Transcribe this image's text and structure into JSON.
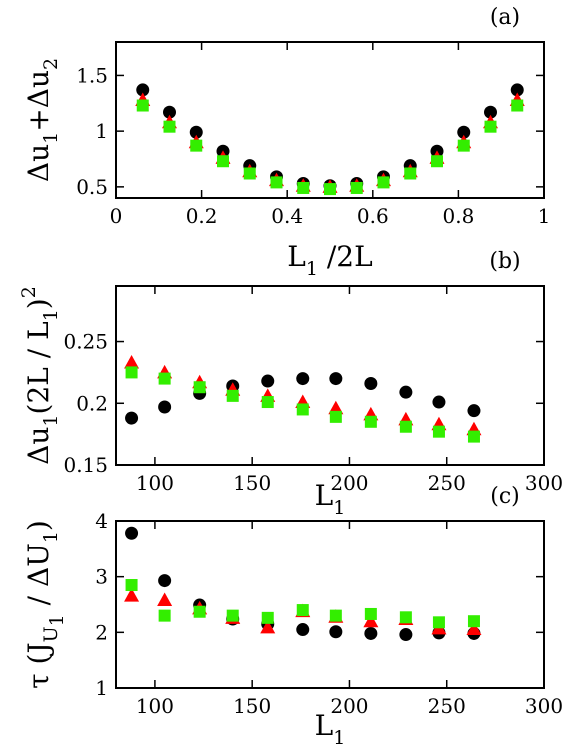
{
  "chart_data": [
    {
      "type": "scatter",
      "panel_label": "(a)",
      "xlabel": {
        "main": "L",
        "sub": "1",
        "rest": " /2L"
      },
      "ylabel": {
        "parts": [
          [
            "Δu",
            "n"
          ],
          [
            "1",
            "s"
          ],
          [
            "+Δu",
            "n"
          ],
          [
            "2",
            "s"
          ]
        ]
      },
      "xlim": [
        0,
        1
      ],
      "ylim": [
        0.4,
        1.8
      ],
      "xticks": [
        0,
        0.2,
        0.4,
        0.6,
        0.8,
        1
      ],
      "xtick_labels": [
        "0",
        "0.2",
        "0.4",
        "0.6",
        "0.8",
        "1"
      ],
      "yticks": [
        0.5,
        1,
        1.5
      ],
      "ytick_labels": [
        "0.5",
        "1",
        "1.5"
      ],
      "series": [
        {
          "marker": "circle",
          "color": "#000000",
          "x": [
            0.0625,
            0.125,
            0.1875,
            0.25,
            0.3125,
            0.375,
            0.4375,
            0.5,
            0.5625,
            0.625,
            0.6875,
            0.75,
            0.8125,
            0.875,
            0.9375
          ],
          "y": [
            1.37,
            1.17,
            0.99,
            0.82,
            0.69,
            0.59,
            0.53,
            0.51,
            0.53,
            0.59,
            0.69,
            0.82,
            0.99,
            1.17,
            1.37
          ]
        },
        {
          "marker": "triangle",
          "color": "#ff0000",
          "x": [
            0.0625,
            0.125,
            0.1875,
            0.25,
            0.3125,
            0.375,
            0.4375,
            0.5,
            0.5625,
            0.625,
            0.6875,
            0.75,
            0.8125,
            0.875,
            0.9375
          ],
          "y": [
            1.28,
            1.08,
            0.9,
            0.76,
            0.64,
            0.56,
            0.51,
            0.5,
            0.51,
            0.56,
            0.64,
            0.76,
            0.9,
            1.08,
            1.28
          ]
        },
        {
          "marker": "square",
          "color": "#33ee00",
          "x": [
            0.0625,
            0.125,
            0.1875,
            0.25,
            0.3125,
            0.375,
            0.4375,
            0.5,
            0.5625,
            0.625,
            0.6875,
            0.75,
            0.8125,
            0.875,
            0.9375
          ],
          "y": [
            1.23,
            1.04,
            0.87,
            0.73,
            0.62,
            0.54,
            0.49,
            0.48,
            0.49,
            0.54,
            0.62,
            0.73,
            0.87,
            1.04,
            1.23
          ]
        }
      ]
    },
    {
      "type": "scatter",
      "panel_label": "(b)",
      "xlabel": {
        "main": "L",
        "sub": "1",
        "rest": ""
      },
      "ylabel": {
        "parts": [
          [
            "Δu",
            "n"
          ],
          [
            "1",
            "s"
          ],
          [
            "(2L / L",
            "n"
          ],
          [
            "1",
            "s"
          ],
          [
            ")",
            "n"
          ],
          [
            "2",
            "p"
          ]
        ]
      },
      "xlim": [
        80,
        300
      ],
      "ylim": [
        0.15,
        0.295
      ],
      "xticks": [
        100,
        150,
        200,
        250,
        300
      ],
      "xtick_labels": [
        "100",
        "150",
        "200",
        "250",
        "300"
      ],
      "yticks": [
        0.15,
        0.2,
        0.25
      ],
      "ytick_labels": [
        "0.15",
        "0.2",
        "0.25"
      ],
      "series": [
        {
          "marker": "circle",
          "color": "#000000",
          "x": [
            88,
            105,
            123,
            140,
            158,
            176,
            193,
            211,
            229,
            246,
            264
          ],
          "y": [
            0.188,
            0.197,
            0.208,
            0.214,
            0.218,
            0.22,
            0.22,
            0.216,
            0.209,
            0.201,
            0.194
          ]
        },
        {
          "marker": "triangle",
          "color": "#ff0000",
          "x": [
            88,
            105,
            123,
            140,
            158,
            176,
            193,
            211,
            229,
            246,
            264
          ],
          "y": [
            0.233,
            0.225,
            0.217,
            0.211,
            0.206,
            0.201,
            0.196,
            0.191,
            0.187,
            0.183,
            0.179
          ]
        },
        {
          "marker": "square",
          "color": "#33ee00",
          "x": [
            88,
            105,
            123,
            140,
            158,
            176,
            193,
            211,
            229,
            246,
            264
          ],
          "y": [
            0.225,
            0.22,
            0.213,
            0.206,
            0.201,
            0.195,
            0.189,
            0.185,
            0.181,
            0.177,
            0.173
          ]
        }
      ]
    },
    {
      "type": "scatter",
      "panel_label": "(c)",
      "xlabel": {
        "main": "L",
        "sub": "1",
        "rest": ""
      },
      "ylabel": {
        "parts": [
          [
            "τ (J",
            "n"
          ],
          [
            "U",
            "s"
          ],
          [
            "1",
            "ss"
          ],
          [
            " / ΔU",
            "n"
          ],
          [
            "1",
            "s"
          ],
          [
            ")",
            "n"
          ]
        ]
      },
      "xlim": [
        80,
        300
      ],
      "ylim": [
        1,
        4
      ],
      "xticks": [
        100,
        150,
        200,
        250,
        300
      ],
      "xtick_labels": [
        "100",
        "150",
        "200",
        "250",
        "300"
      ],
      "yticks": [
        1,
        2,
        3,
        4
      ],
      "ytick_labels": [
        "1",
        "2",
        "3",
        "4"
      ],
      "series": [
        {
          "marker": "circle",
          "color": "#000000",
          "x": [
            88,
            105,
            123,
            140,
            158,
            176,
            193,
            211,
            229,
            246,
            264
          ],
          "y": [
            3.78,
            2.93,
            2.49,
            2.24,
            2.15,
            2.05,
            2.01,
            1.98,
            1.96,
            1.99,
            1.98
          ]
        },
        {
          "marker": "triangle",
          "color": "#ff0000",
          "x": [
            88,
            105,
            123,
            140,
            158,
            176,
            193,
            211,
            229,
            246,
            264
          ],
          "y": [
            2.66,
            2.58,
            2.43,
            2.26,
            2.09,
            2.38,
            2.28,
            2.2,
            2.24,
            2.07,
            2.06
          ]
        },
        {
          "marker": "square",
          "color": "#33ee00",
          "x": [
            88,
            105,
            123,
            140,
            158,
            176,
            193,
            211,
            229,
            246,
            264
          ],
          "y": [
            2.85,
            2.3,
            2.37,
            2.3,
            2.26,
            2.4,
            2.3,
            2.33,
            2.27,
            2.18,
            2.2
          ]
        }
      ]
    }
  ]
}
